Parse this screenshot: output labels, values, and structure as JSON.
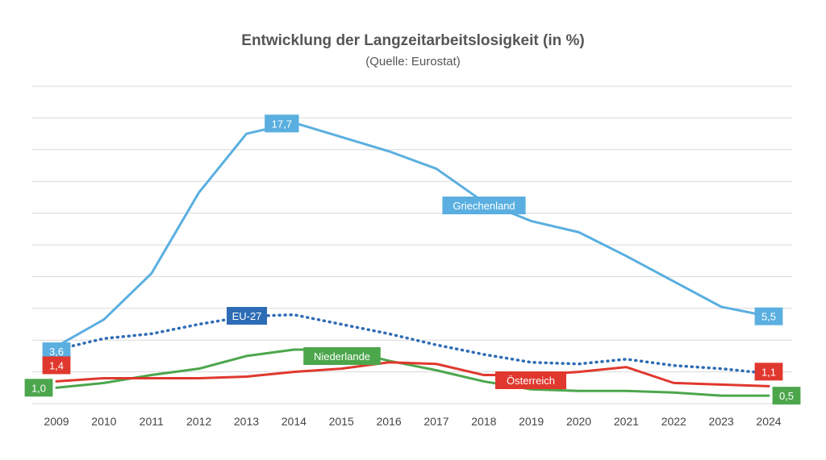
{
  "chart_data": {
    "type": "line",
    "title": "Entwicklung der Langzeitarbeitslosigkeit (in %)",
    "subtitle": "(Quelle: Eurostat)",
    "x": [
      "2009",
      "2010",
      "2011",
      "2012",
      "2013",
      "2014",
      "2015",
      "2016",
      "2017",
      "2018",
      "2019",
      "2020",
      "2021",
      "2022",
      "2023",
      "2024"
    ],
    "ylim": [
      0,
      20
    ],
    "grid": true,
    "series": [
      {
        "name": "Griechenland",
        "color": "#5AAFE0",
        "style": "solid",
        "values": [
          3.6,
          5.3,
          8.2,
          13.3,
          17.0,
          17.7,
          16.8,
          15.9,
          14.8,
          12.7,
          11.5,
          10.8,
          9.3,
          7.7,
          6.1,
          5.5
        ]
      },
      {
        "name": "EU-27",
        "color": "#2E6CB5",
        "style": "dotted",
        "values": [
          3.4,
          4.1,
          4.4,
          5.0,
          5.5,
          5.6,
          5.0,
          4.4,
          3.7,
          3.1,
          2.6,
          2.5,
          2.8,
          2.4,
          2.2,
          1.9
        ]
      },
      {
        "name": "Niederlande",
        "color": "#4CA64C",
        "style": "solid",
        "values": [
          1.0,
          1.3,
          1.8,
          2.2,
          3.0,
          3.4,
          3.4,
          2.7,
          2.1,
          1.4,
          0.9,
          0.8,
          0.8,
          0.7,
          0.5,
          0.5
        ]
      },
      {
        "name": "Österreich",
        "color": "#E0382E",
        "style": "solid",
        "values": [
          1.4,
          1.6,
          1.6,
          1.6,
          1.7,
          2.0,
          2.2,
          2.6,
          2.5,
          1.8,
          1.8,
          2.0,
          2.3,
          1.3,
          1.2,
          1.1
        ]
      }
    ],
    "data_labels": [
      {
        "series": "Griechenland",
        "index": 5,
        "text": "17,7"
      },
      {
        "series": "Griechenland",
        "index": 0,
        "text": "3,6"
      },
      {
        "series": "Griechenland",
        "index": 15,
        "text": "5,5"
      },
      {
        "series": "Österreich",
        "index": 0,
        "text": "1,4"
      },
      {
        "series": "Österreich",
        "index": 15,
        "text": "1,1"
      },
      {
        "series": "Niederlande",
        "index": 0,
        "text": "1,0"
      },
      {
        "series": "Niederlande",
        "index": 15,
        "text": "0,5"
      }
    ]
  }
}
